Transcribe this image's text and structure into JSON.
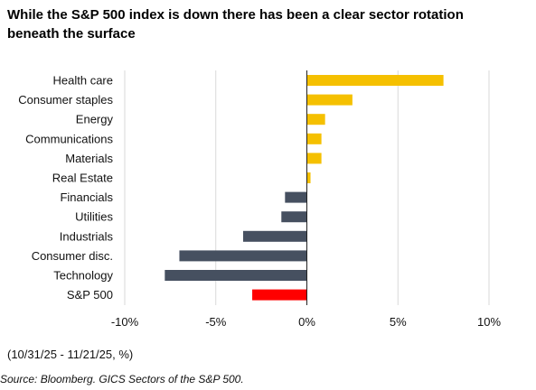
{
  "chart_data": {
    "type": "bar",
    "orientation": "horizontal",
    "title": "While the S&P 500 index is down there has been a clear sector rotation beneath the surface",
    "categories": [
      "Health care",
      "Consumer staples",
      "Energy",
      "Communications",
      "Materials",
      "Real Estate",
      "Financials",
      "Utilities",
      "Industrials",
      "Consumer disc.",
      "Technology",
      "S&P 500"
    ],
    "values": [
      7.5,
      2.5,
      1.0,
      0.8,
      0.8,
      0.2,
      -1.2,
      -1.4,
      -3.5,
      -7.0,
      -7.8,
      -3.0
    ],
    "value_unit": "%",
    "xlim": [
      -10,
      10
    ],
    "x_ticks": [
      -10,
      -5,
      0,
      5,
      10
    ],
    "x_tick_labels": [
      "-10%",
      "-5%",
      "0%",
      "5%",
      "10%"
    ],
    "grid": "vertical",
    "legend": "none",
    "colors": {
      "positive": "#f5c000",
      "negative": "#465060",
      "highlight": "#ff0000",
      "gridline": "#d9d9d9",
      "zero_line": "#222222"
    },
    "highlight_category": "S&P 500"
  },
  "footer": {
    "period": "(10/31/25 - 11/21/25, %)",
    "source": "Source: Bloomberg. GICS Sectors of the S&P 500."
  }
}
